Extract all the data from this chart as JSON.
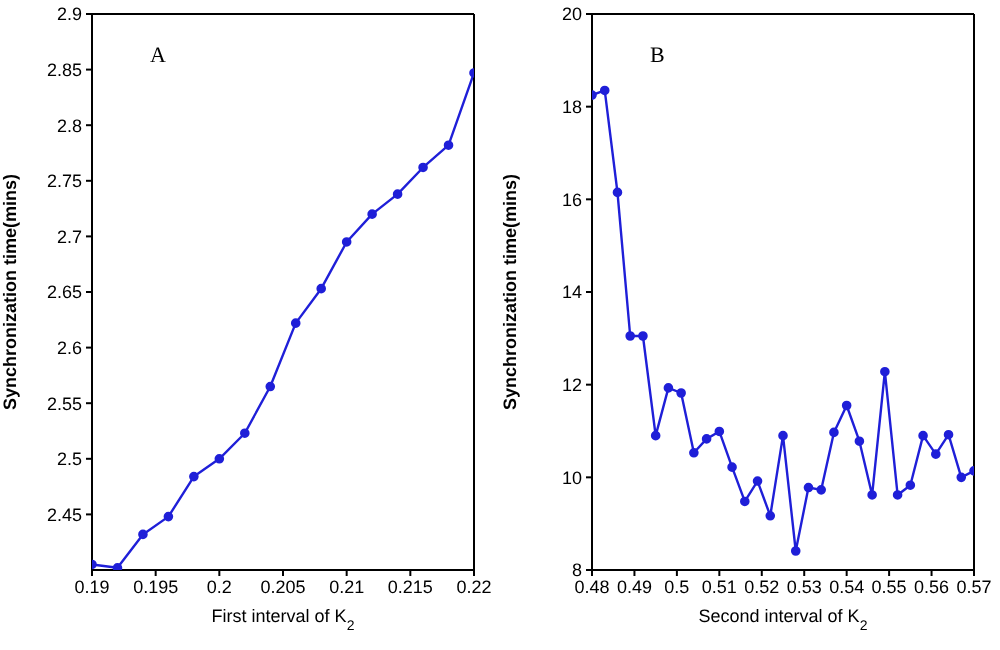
{
  "chart_data": [
    {
      "type": "line",
      "xlabel": "First interval of K$_{2}$",
      "ylabel": "Synchronization time(mins)",
      "annotations": [
        "A"
      ],
      "marker": "circle",
      "grid": false,
      "legend": false,
      "x": [
        0.19,
        0.192,
        0.194,
        0.196,
        0.198,
        0.2,
        0.202,
        0.204,
        0.206,
        0.208,
        0.21,
        0.212,
        0.214,
        0.216,
        0.218,
        0.22
      ],
      "series": [
        {
          "color": "#1f1fd8",
          "values": [
            2.405,
            2.402,
            2.432,
            2.448,
            2.484,
            2.5,
            2.523,
            2.565,
            2.622,
            2.653,
            2.695,
            2.72,
            2.738,
            2.762,
            2.782,
            2.847
          ]
        }
      ],
      "xlim": [
        0.19,
        0.22
      ],
      "xticks": [
        0.19,
        0.195,
        0.2,
        0.205,
        0.21,
        0.215,
        0.22
      ],
      "ylim": [
        2.4,
        2.9
      ],
      "yticks": [
        2.45,
        2.5,
        2.55,
        2.6,
        2.65,
        2.7,
        2.75,
        2.8,
        2.85,
        2.9
      ]
    },
    {
      "type": "line",
      "xlabel": "Second interval of K$_{2}$",
      "ylabel": "Synchronization time(mins)",
      "annotations": [
        "B"
      ],
      "marker": "circle",
      "grid": false,
      "legend": false,
      "x": [
        0.48,
        0.483,
        0.486,
        0.489,
        0.492,
        0.495,
        0.498,
        0.501,
        0.504,
        0.507,
        0.51,
        0.513,
        0.516,
        0.519,
        0.522,
        0.525,
        0.528,
        0.531,
        0.534,
        0.537,
        0.54,
        0.543,
        0.546,
        0.549,
        0.552,
        0.555,
        0.558,
        0.561,
        0.564,
        0.567,
        0.57
      ],
      "series": [
        {
          "color": "#1f1fd8",
          "values": [
            18.25,
            18.35,
            16.15,
            13.05,
            13.05,
            10.9,
            11.93,
            11.82,
            10.53,
            10.83,
            10.99,
            10.22,
            9.48,
            9.92,
            9.17,
            10.9,
            8.41,
            9.78,
            9.73,
            10.97,
            11.55,
            10.78,
            9.62,
            12.28,
            9.62,
            9.83,
            10.9,
            10.5,
            10.92,
            10.0,
            10.14
          ]
        }
      ],
      "xlim": [
        0.48,
        0.57
      ],
      "xticks": [
        0.48,
        0.49,
        0.5,
        0.51,
        0.52,
        0.53,
        0.54,
        0.55,
        0.56,
        0.57
      ],
      "ylim": [
        8,
        20
      ],
      "yticks": [
        8,
        10,
        12,
        14,
        16,
        18,
        20
      ]
    }
  ]
}
